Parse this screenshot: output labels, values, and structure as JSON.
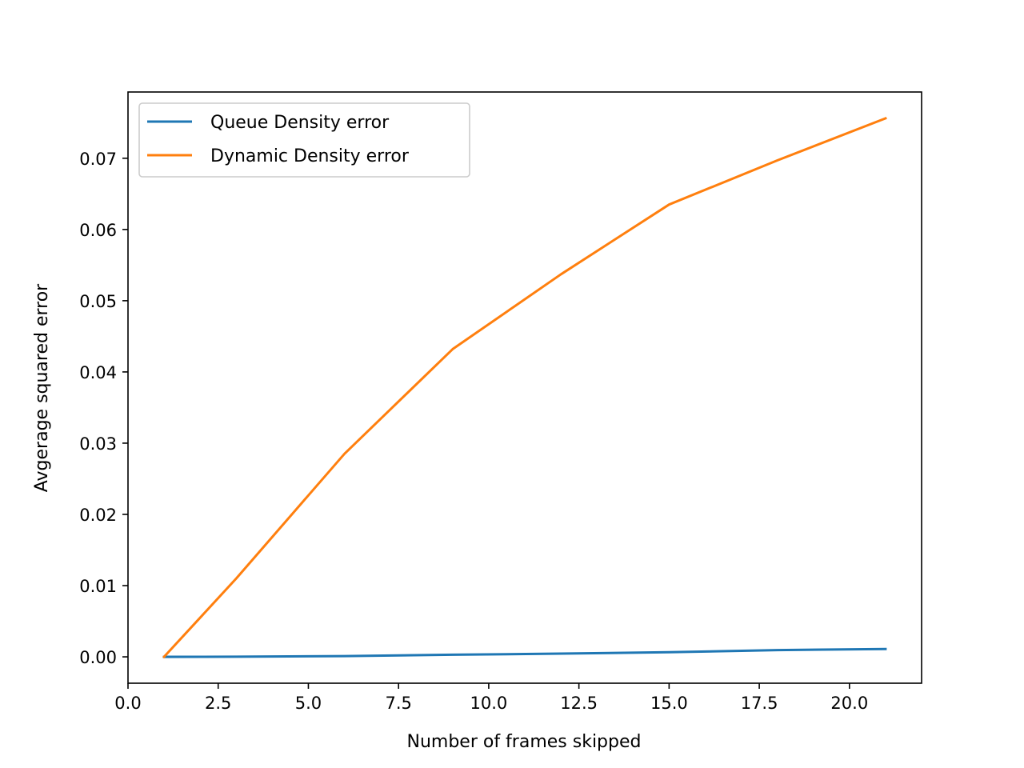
{
  "chart_data": {
    "type": "line",
    "title": "",
    "xlabel": "Number of frames skipped",
    "ylabel": "Avgerage squared error",
    "xlim": [
      0,
      22
    ],
    "ylim": [
      -0.0037,
      0.0793
    ],
    "xticks": [
      0,
      2.5,
      5,
      7.5,
      10,
      12.5,
      15,
      17.5,
      20
    ],
    "xtick_labels": [
      "0.0",
      "2.5",
      "5.0",
      "7.5",
      "10.0",
      "12.5",
      "15.0",
      "17.5",
      "20.0"
    ],
    "yticks": [
      0,
      0.01,
      0.02,
      0.03,
      0.04,
      0.05,
      0.06,
      0.07
    ],
    "ytick_labels": [
      "0.00",
      "0.01",
      "0.02",
      "0.03",
      "0.04",
      "0.05",
      "0.06",
      "0.07"
    ],
    "grid": false,
    "legend_position": "top-left",
    "x": [
      1,
      3,
      6,
      9,
      12,
      15,
      18,
      21
    ],
    "series": [
      {
        "name": "Queue Density error",
        "color": "#1f77b4",
        "values": [
          0.0,
          2e-05,
          0.0001,
          0.0003,
          0.00045,
          0.00065,
          0.00095,
          0.0011
        ]
      },
      {
        "name": "Dynamic Density error",
        "color": "#ff7f0e",
        "values": [
          0.0,
          0.011,
          0.0285,
          0.0432,
          0.0537,
          0.0635,
          0.0697,
          0.0756
        ]
      }
    ]
  }
}
